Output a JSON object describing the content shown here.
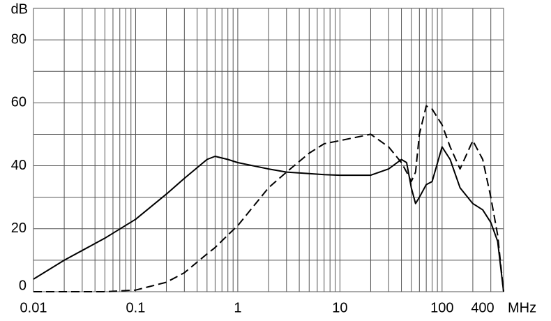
{
  "chart_data": {
    "type": "line",
    "ylabel": "dB",
    "xlabel": "MHz",
    "xscale": "log",
    "grid": true,
    "xlim": [
      0.01,
      400
    ],
    "xticks": [
      0.01,
      0.1,
      1,
      10,
      100,
      400
    ],
    "xminor": [
      0.02,
      0.03,
      0.04,
      0.05,
      0.06,
      0.07,
      0.08,
      0.09,
      0.2,
      0.3,
      0.4,
      0.5,
      0.6,
      0.7,
      0.8,
      0.9,
      2,
      3,
      4,
      5,
      6,
      7,
      8,
      9,
      20,
      30,
      40,
      50,
      60,
      70,
      80,
      90,
      200,
      300
    ],
    "ylim": [
      0,
      90
    ],
    "yticks": [
      0,
      20,
      40,
      60,
      80
    ],
    "yminor": [
      10,
      30,
      50,
      70,
      90
    ],
    "x": [
      0.01,
      0.02,
      0.05,
      0.1,
      0.2,
      0.3,
      0.5,
      0.6,
      0.8,
      1,
      2,
      3,
      5,
      7,
      10,
      20,
      30,
      40,
      45,
      50,
      55,
      60,
      70,
      80,
      100,
      120,
      150,
      200,
      250,
      300,
      350,
      400
    ],
    "series": [
      {
        "color": "#000000",
        "dash": "solid",
        "values": [
          4,
          10,
          17,
          23,
          31,
          36,
          42,
          43,
          42,
          41,
          39,
          38,
          37.5,
          37.2,
          37,
          37,
          39,
          42,
          41,
          33,
          28,
          30,
          34,
          35,
          46,
          42,
          33,
          28,
          26,
          22,
          16,
          0
        ]
      },
      {
        "color": "#000000",
        "dash": "dashed",
        "values": [
          0,
          0,
          0,
          0.5,
          3,
          6,
          12,
          14,
          18,
          21,
          33,
          38,
          44,
          47,
          48,
          50,
          46,
          41,
          38,
          35,
          38,
          50,
          59,
          58,
          53,
          46,
          39,
          48,
          42,
          30,
          18,
          0
        ]
      }
    ]
  }
}
